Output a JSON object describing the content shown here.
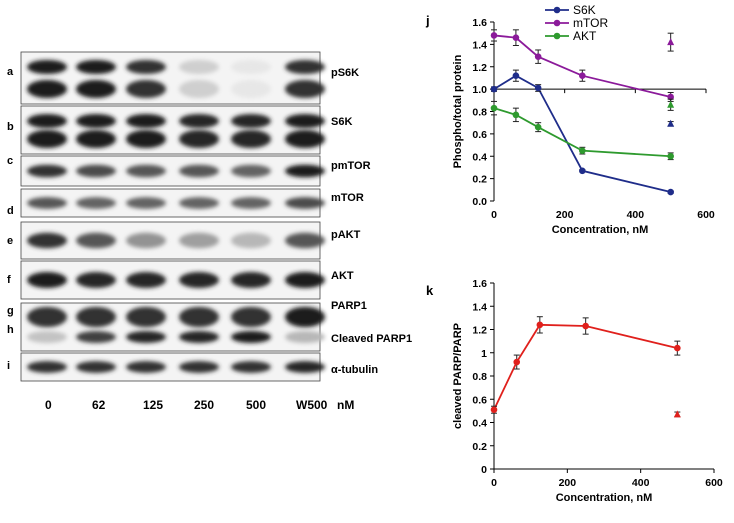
{
  "blot": {
    "lanes": [
      "0",
      "62",
      "125",
      "250",
      "500",
      "W500"
    ],
    "unit": "nM",
    "rows": [
      {
        "letter": "a",
        "labels": [
          "pS6K"
        ],
        "intensities": [
          0.95,
          0.95,
          0.85,
          0.2,
          0.1,
          0.85
        ]
      },
      {
        "letter": "b",
        "labels": [
          "S6K"
        ],
        "intensities": [
          0.95,
          0.95,
          0.95,
          0.9,
          0.9,
          0.95
        ]
      },
      {
        "letter": "c",
        "labels": [
          "pmTOR"
        ],
        "intensities": [
          0.85,
          0.75,
          0.7,
          0.7,
          0.65,
          0.95
        ]
      },
      {
        "letter": "d",
        "labels": [
          "mTOR"
        ],
        "intensities": [
          0.7,
          0.65,
          0.65,
          0.65,
          0.65,
          0.75
        ]
      },
      {
        "letter": "e",
        "labels": [
          "pAKT"
        ],
        "intensities": [
          0.85,
          0.7,
          0.45,
          0.4,
          0.3,
          0.7
        ]
      },
      {
        "letter": "f",
        "labels": [
          "AKT"
        ],
        "intensities": [
          0.95,
          0.9,
          0.9,
          0.9,
          0.9,
          0.95
        ]
      },
      {
        "letter": "g",
        "letter2": "h",
        "labels": [
          "PARP1",
          "Cleaved PARP1"
        ],
        "intensities": [
          0.85,
          0.85,
          0.85,
          0.85,
          0.85,
          0.95
        ],
        "intensities2": [
          0.25,
          0.8,
          0.9,
          0.9,
          0.95,
          0.3
        ]
      },
      {
        "letter": "i",
        "labels": [
          "α-tubulin"
        ],
        "intensities": [
          0.85,
          0.85,
          0.85,
          0.85,
          0.85,
          0.9
        ]
      }
    ]
  },
  "chart_data": [
    {
      "panel": "j",
      "type": "line",
      "xlabel": "Concentration, nM",
      "ylabel": "Phospho/total protein",
      "xlim": [
        0,
        600
      ],
      "ylim": [
        0,
        1.6
      ],
      "xticks": [
        "0",
        "200",
        "400",
        "600"
      ],
      "yticks": [
        "0.0",
        "0.2",
        "0.4",
        "0.6",
        "0.8",
        "1.0",
        "1.2",
        "1.4",
        "1.6"
      ],
      "reference_line_y": 1.0,
      "legend": [
        "S6K",
        "mTOR",
        "AKT"
      ],
      "series": [
        {
          "name": "S6K",
          "color": "#1f2d8a",
          "x": [
            0,
            62,
            125,
            250,
            500
          ],
          "y": [
            1.0,
            1.12,
            1.01,
            0.27,
            0.08
          ],
          "err": [
            0.02,
            0.05,
            0.03,
            0.01,
            0.01
          ],
          "w500": {
            "x": 500,
            "y": 0.69,
            "err": 0.02
          }
        },
        {
          "name": "mTOR",
          "color": "#8b1a9a",
          "x": [
            0,
            62,
            125,
            250,
            500
          ],
          "y": [
            1.48,
            1.46,
            1.29,
            1.12,
            0.93
          ],
          "err": [
            0.05,
            0.07,
            0.06,
            0.05,
            0.04
          ],
          "w500": {
            "x": 500,
            "y": 1.42,
            "err": 0.08
          }
        },
        {
          "name": "AKT",
          "color": "#2e9a2e",
          "x": [
            0,
            62,
            125,
            250,
            500
          ],
          "y": [
            0.83,
            0.77,
            0.66,
            0.45,
            0.4
          ],
          "err": [
            0.06,
            0.06,
            0.04,
            0.03,
            0.03
          ],
          "w500": {
            "x": 500,
            "y": 0.86,
            "err": 0.05
          }
        }
      ]
    },
    {
      "panel": "k",
      "type": "line",
      "xlabel": "Concentration, nM",
      "ylabel": "cleaved PARP/PARP",
      "xlim": [
        0,
        600
      ],
      "ylim": [
        0,
        1.6
      ],
      "xticks": [
        "0",
        "200",
        "400",
        "600"
      ],
      "yticks": [
        "0",
        "0.2",
        "0.4",
        "0.6",
        "0.8",
        "1",
        "1.2",
        "1.4",
        "1.6"
      ],
      "series": [
        {
          "name": "cleaved PARP/PARP",
          "color": "#e0201c",
          "x": [
            0,
            62,
            125,
            250,
            500
          ],
          "y": [
            0.51,
            0.92,
            1.24,
            1.23,
            1.04
          ],
          "err": [
            0.03,
            0.06,
            0.07,
            0.07,
            0.06
          ],
          "w500": {
            "x": 500,
            "y": 0.47,
            "err": 0.02
          }
        }
      ]
    }
  ]
}
